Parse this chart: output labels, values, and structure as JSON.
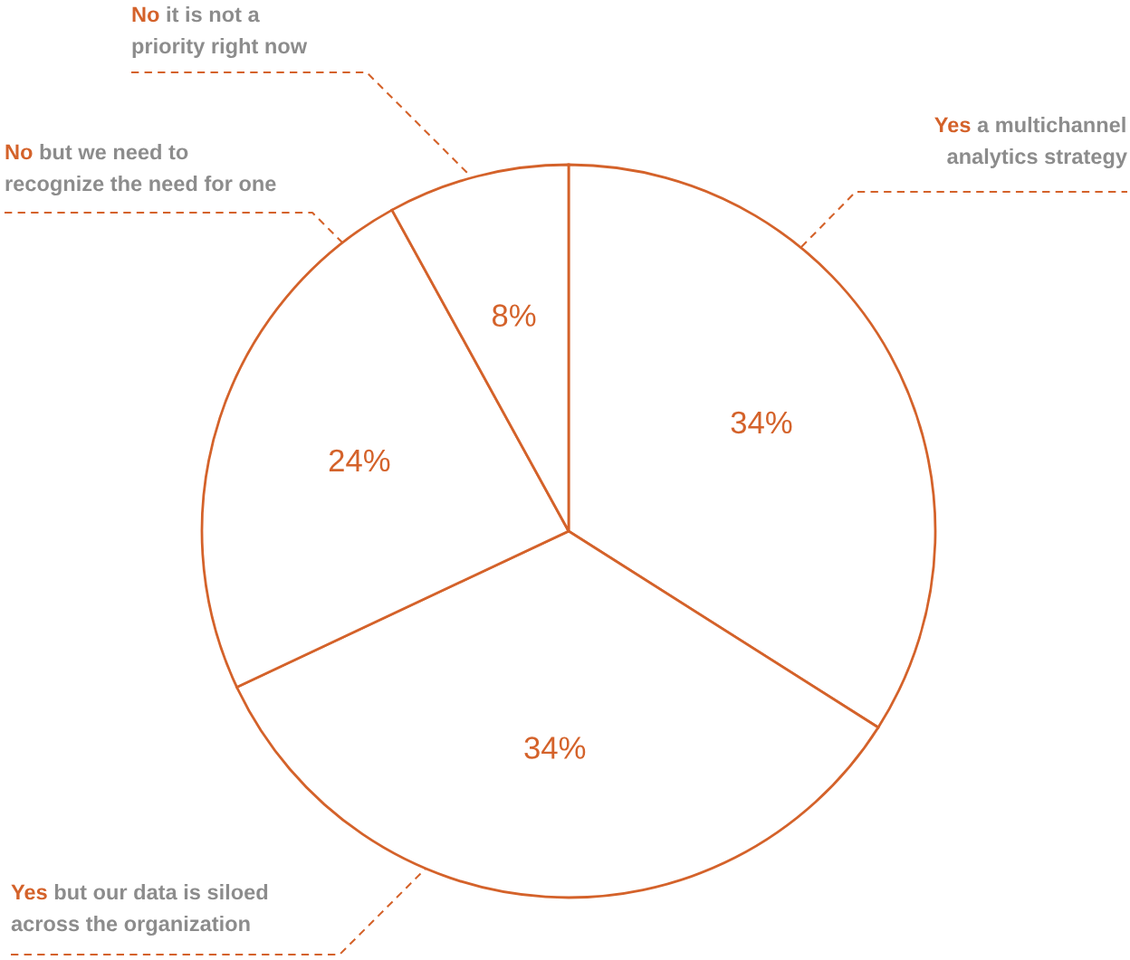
{
  "chart_data": {
    "type": "pie",
    "categories": [
      "Yes a multichannel\nanalytics strategy",
      "Yes but our data is siloed\nacross the organization",
      "No but we need to\nrecognize the need for one",
      "No it is not a\npriority right now"
    ],
    "values": [
      34,
      34,
      24,
      8
    ],
    "colors": [
      "#d4622a",
      "#d4622a",
      "#d4622a",
      "#d4622a"
    ],
    "value_labels": [
      "34%",
      "34%",
      "24%",
      "8%"
    ]
  }
}
